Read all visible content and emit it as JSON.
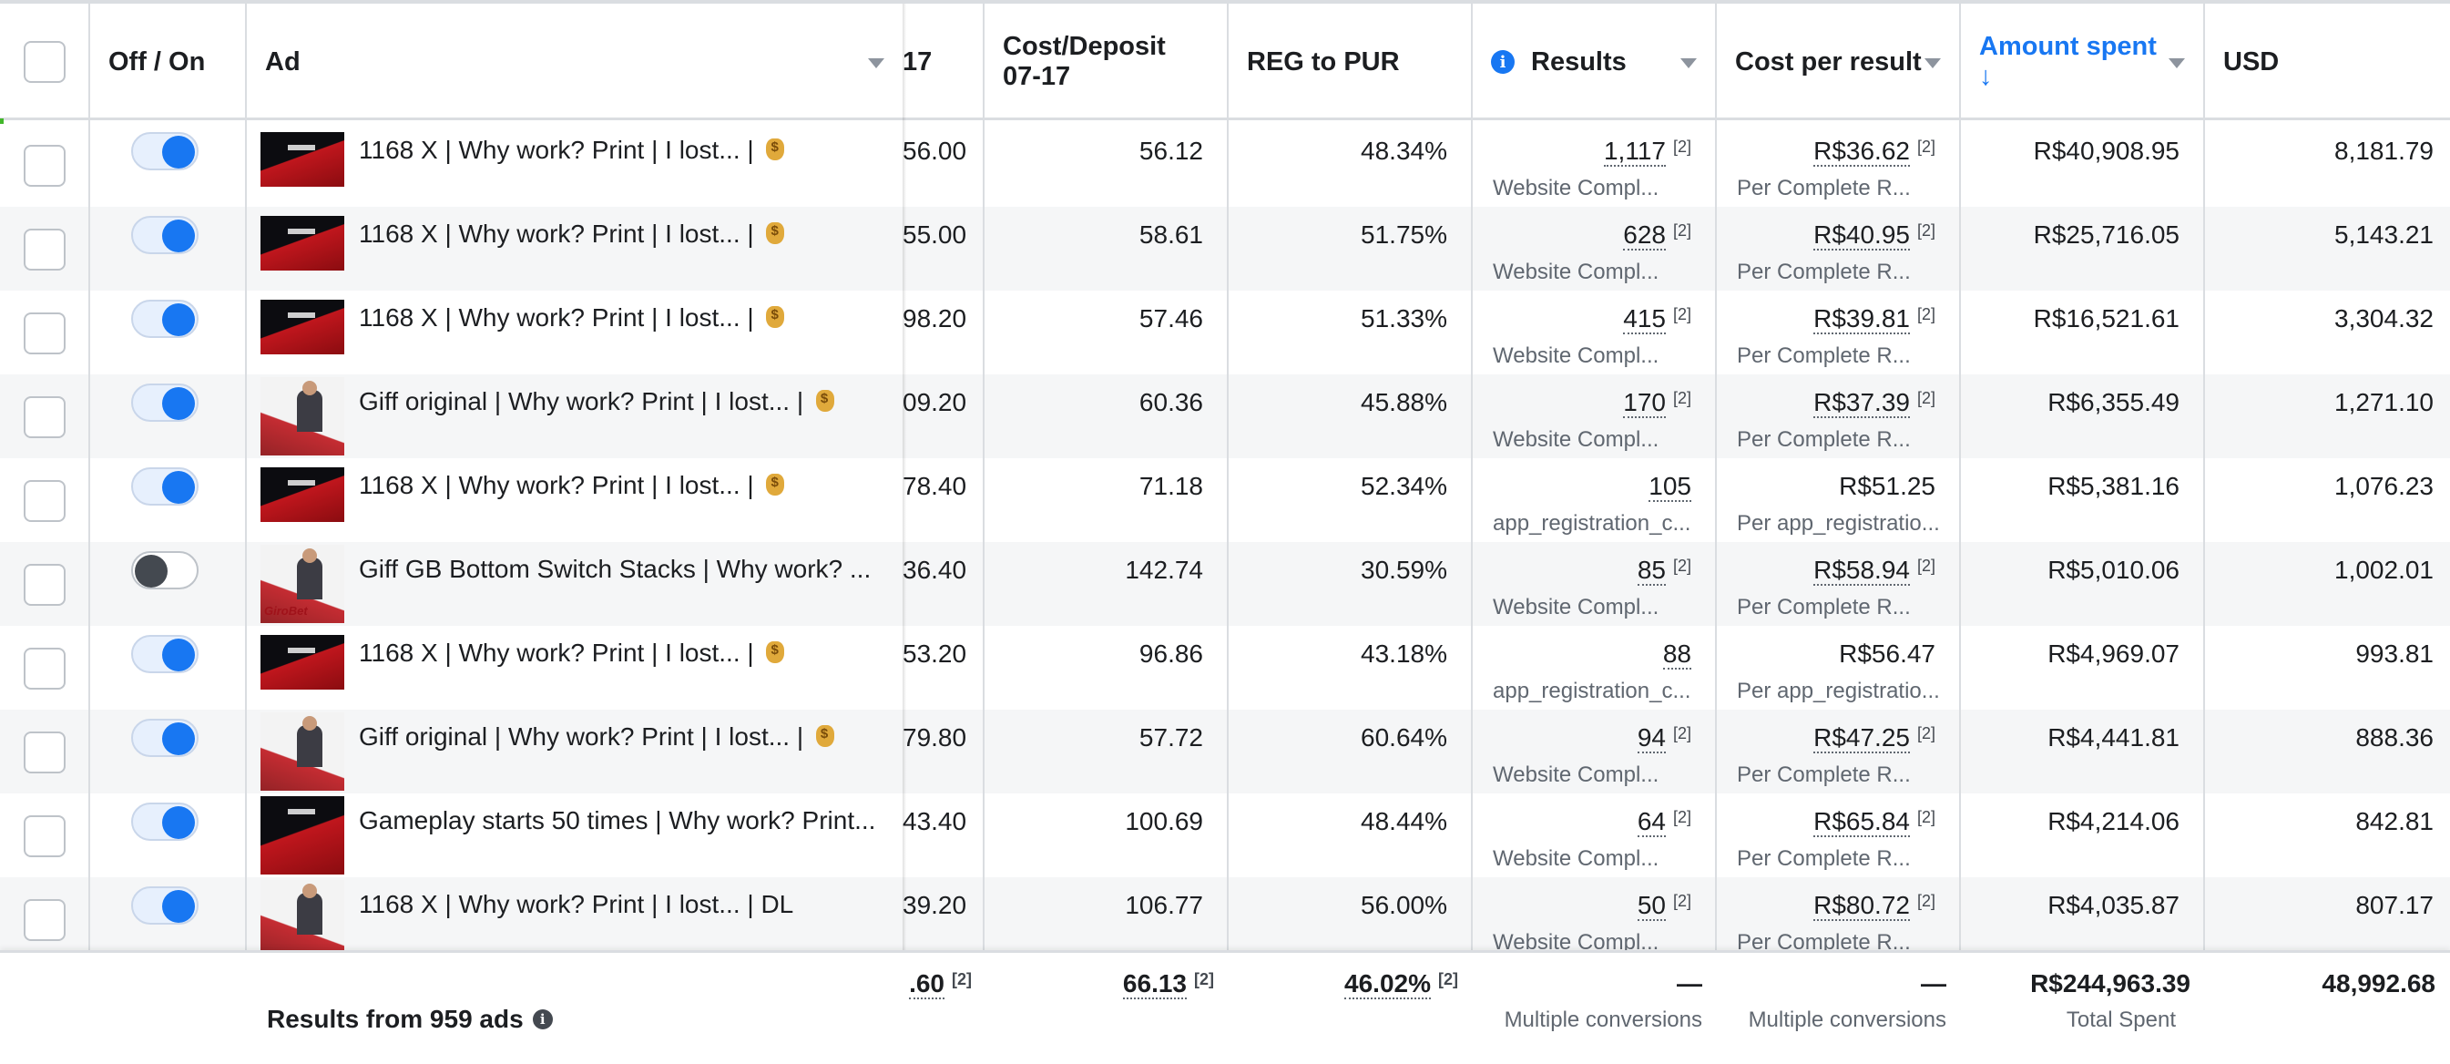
{
  "header": {
    "off_on": "Off / On",
    "ad": "Ad",
    "col_17": "17",
    "cost_deposit": "Cost/Deposit 07-17",
    "reg_to_pur": "REG to PUR",
    "results": "Results",
    "cost_per_result": "Cost per result",
    "amount_spent": "Amount spent",
    "amount_spent_sort": "↓",
    "usd": "USD"
  },
  "rows": [
    {
      "on": true,
      "thumb": "chart",
      "ad": "1168 X | Why work? Print | I lost... | ",
      "bag": true,
      "c17": "56.00",
      "cost_deposit": "56.12",
      "reg_pur": "48.34%",
      "results": "1,117",
      "results_sup": "[2]",
      "results_sub": "Website Compl...",
      "cpr": "R$36.62",
      "cpr_sup": "[2]",
      "cpr_sub": "Per Complete R...",
      "amount": "R$40,908.95",
      "usd": "8,181.79"
    },
    {
      "on": true,
      "thumb": "chart",
      "ad": "1168 X | Why work? Print | I lost... | ",
      "bag": true,
      "c17": "55.00",
      "cost_deposit": "58.61",
      "reg_pur": "51.75%",
      "results": "628",
      "results_sup": "[2]",
      "results_sub": "Website Compl...",
      "cpr": "R$40.95",
      "cpr_sup": "[2]",
      "cpr_sub": "Per Complete R...",
      "amount": "R$25,716.05",
      "usd": "5,143.21"
    },
    {
      "on": true,
      "thumb": "chart",
      "ad": "1168 X | Why work? Print | I lost... | ",
      "bag": true,
      "c17": "98.20",
      "cost_deposit": "57.46",
      "reg_pur": "51.33%",
      "results": "415",
      "results_sup": "[2]",
      "results_sub": "Website Compl...",
      "cpr": "R$39.81",
      "cpr_sup": "[2]",
      "cpr_sub": "Per Complete R...",
      "amount": "R$16,521.61",
      "usd": "3,304.32"
    },
    {
      "on": true,
      "thumb": "person",
      "ad": "Giff original | Why work? Print | I lost... | ",
      "bag": true,
      "c17": "09.20",
      "cost_deposit": "60.36",
      "reg_pur": "45.88%",
      "results": "170",
      "results_sup": "[2]",
      "results_sub": "Website Compl...",
      "cpr": "R$37.39",
      "cpr_sup": "[2]",
      "cpr_sub": "Per Complete R...",
      "amount": "R$6,355.49",
      "usd": "1,271.10"
    },
    {
      "on": true,
      "thumb": "chart",
      "ad": "1168 X | Why work? Print | I lost... | ",
      "bag": true,
      "c17": "78.40",
      "cost_deposit": "71.18",
      "reg_pur": "52.34%",
      "results": "105",
      "results_sup": "",
      "results_sub": "app_registration_c...",
      "cpr": "R$51.25",
      "cpr_sup": "",
      "cpr_sub": "Per app_registratio...",
      "amount": "R$5,381.16",
      "usd": "1,076.23"
    },
    {
      "on": false,
      "thumb": "brand",
      "brand": "GiroBet",
      "ad": "Giff GB Bottom Switch Stacks | Why work? ...",
      "bag": false,
      "c17": "36.40",
      "cost_deposit": "142.74",
      "reg_pur": "30.59%",
      "results": "85",
      "results_sup": "[2]",
      "results_sub": "Website Compl...",
      "cpr": "R$58.94",
      "cpr_sup": "[2]",
      "cpr_sub": "Per Complete R...",
      "amount": "R$5,010.06",
      "usd": "1,002.01"
    },
    {
      "on": true,
      "thumb": "chart",
      "ad": "1168 X | Why work? Print | I lost... | ",
      "bag": true,
      "c17": "53.20",
      "cost_deposit": "96.86",
      "reg_pur": "43.18%",
      "results": "88",
      "results_sup": "",
      "results_sub": "app_registration_c...",
      "cpr": "R$56.47",
      "cpr_sup": "",
      "cpr_sub": "Per app_registratio...",
      "amount": "R$4,969.07",
      "usd": "993.81"
    },
    {
      "on": true,
      "thumb": "person",
      "ad": "Giff original | Why work? Print | I lost... | ",
      "bag": true,
      "c17": "79.80",
      "cost_deposit": "57.72",
      "reg_pur": "60.64%",
      "results": "94",
      "results_sup": "[2]",
      "results_sub": "Website Compl...",
      "cpr": "R$47.25",
      "cpr_sup": "[2]",
      "cpr_sub": "Per Complete R...",
      "amount": "R$4,441.81",
      "usd": "888.36"
    },
    {
      "on": true,
      "thumb": "tall",
      "ad": "Gameplay starts 50 times | Why work? Print...",
      "bag": false,
      "c17": "43.40",
      "cost_deposit": "100.69",
      "reg_pur": "48.44%",
      "results": "64",
      "results_sup": "[2]",
      "results_sub": "Website Compl...",
      "cpr": "R$65.84",
      "cpr_sup": "[2]",
      "cpr_sub": "Per Complete R...",
      "amount": "R$4,214.06",
      "usd": "842.81"
    },
    {
      "on": true,
      "thumb": "person",
      "ad": "1168 X | Why work? Print | I lost... | DL",
      "bag": false,
      "c17": "39.20",
      "cost_deposit": "106.77",
      "reg_pur": "56.00%",
      "results": "50",
      "results_sup": "[2]",
      "results_sub": "Website Compl...",
      "cpr": "R$80.72",
      "cpr_sup": "[2]",
      "cpr_sub": "Per Complete R...",
      "amount": "R$4,035.87",
      "usd": "807.17"
    }
  ],
  "footer": {
    "label": "Results from 959 ads",
    "c17": ".60",
    "c17_sup": "[2]",
    "cost_deposit": "66.13",
    "cost_deposit_sup": "[2]",
    "reg_pur": "46.02%",
    "reg_pur_sup": "[2]",
    "results": "—",
    "results_caption": "Multiple conversions",
    "cpr": "—",
    "cpr_caption": "Multiple conversions",
    "amount": "R$244,963.39",
    "amount_caption": "Total Spent",
    "usd": "48,992.68"
  },
  "colors": {
    "accent": "#1877f2",
    "toggle_off_knob": "#444950"
  }
}
